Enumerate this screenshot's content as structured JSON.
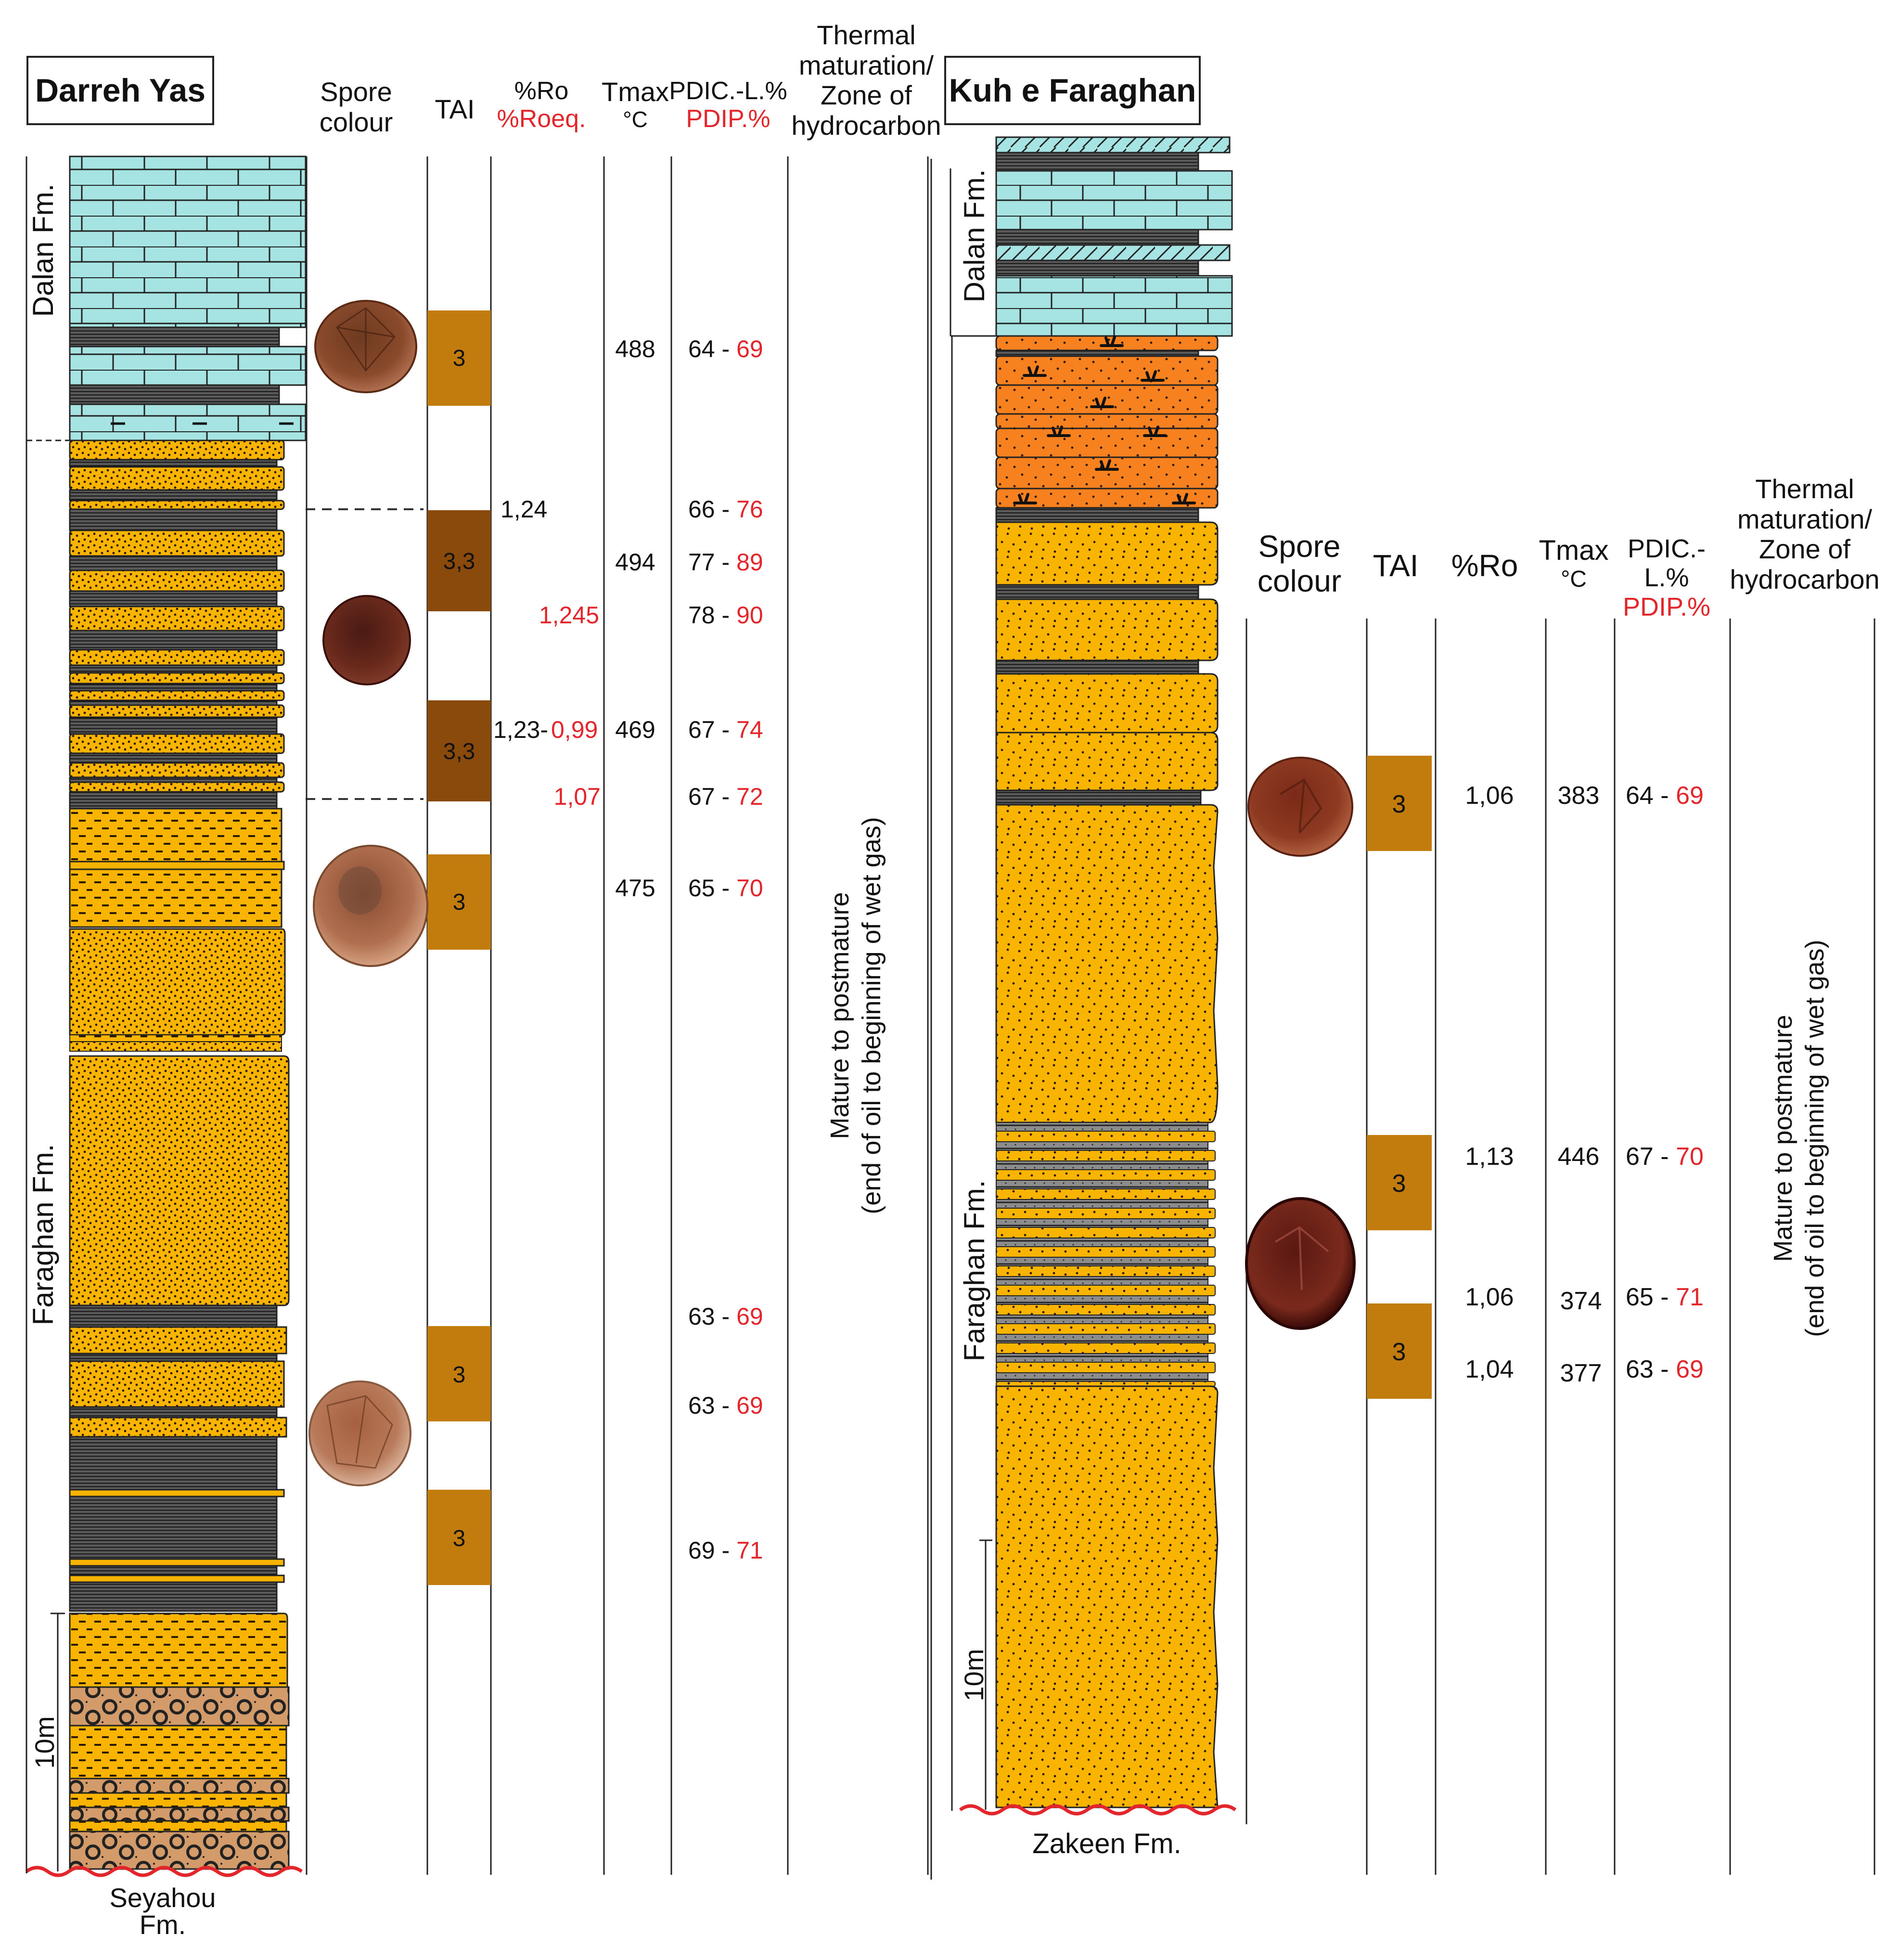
{
  "darreh": {
    "title": "Darreh Yas",
    "headers": {
      "spore": [
        "Spore",
        "colour"
      ],
      "tai": "TAI",
      "ro": "%Ro",
      "ro_eq": "%Roeq.",
      "tmax": "Tmax",
      "tmax_unit": "°C",
      "pdi_cl": "PDIC.-L.%",
      "pdi_p": "PDIP.%",
      "thermal": [
        "Thermal",
        "maturation/",
        "Zone of",
        "hydrocarbon"
      ]
    },
    "formations": {
      "top": "Dalan Fm.",
      "middle": "Faraghan Fm.",
      "base": [
        "Seyahou",
        "Fm."
      ]
    },
    "scale": "10m",
    "tai": [
      "3",
      "3,3",
      "3,3",
      "3",
      "3",
      "3"
    ],
    "ro": [
      "1,24",
      "1,245",
      "1,23-",
      "0,99",
      "1,07"
    ],
    "tmax": [
      "488",
      "494",
      "469",
      "475"
    ],
    "pdi": [
      [
        "64",
        "69"
      ],
      [
        "66",
        "76"
      ],
      [
        "77",
        "89"
      ],
      [
        "78",
        "90"
      ],
      [
        "67",
        "74"
      ],
      [
        "67",
        "72"
      ],
      [
        "65",
        "70"
      ],
      [
        "63",
        "69"
      ],
      [
        "63",
        "69"
      ],
      [
        "69",
        "71"
      ]
    ],
    "zone": [
      "Mature to postmature",
      "(end of oil to beginning of wet gas)"
    ]
  },
  "kuh": {
    "title": "Kuh e Faraghan",
    "headers": {
      "spore": [
        "Spore",
        "colour"
      ],
      "tai": "TAI",
      "ro": "%Ro",
      "tmax": "Tmax",
      "tmax_unit": "°C",
      "pdi_cl": "PDIC.-L.%",
      "pdi_p": "PDIP.%",
      "thermal": [
        "Thermal",
        "maturation/",
        "Zone of",
        "hydrocarbon"
      ]
    },
    "formations": {
      "top": "Dalan Fm.",
      "middle": "Faraghan Fm.",
      "base": "Zakeen Fm."
    },
    "scale": "10m",
    "tai": [
      "3",
      "3",
      "3"
    ],
    "ro": [
      "1,06",
      "1,13",
      "1,06",
      "1,04"
    ],
    "tmax": [
      "383",
      "446",
      "374",
      "377"
    ],
    "pdi": [
      [
        "64",
        "69"
      ],
      [
        "67",
        "70"
      ],
      [
        "65",
        "71"
      ],
      [
        "63",
        "69"
      ]
    ],
    "zone": [
      "Mature to postmature",
      "(end of oil to beginning of wet gas)"
    ]
  },
  "colors": {
    "limestone": "#a6e3e3",
    "sandstone": "#f8b400",
    "shale": "#5a5a5a",
    "conglomerate": "#d39a6a",
    "red_bed": "#f7801f",
    "tai_3": "#c27c0e",
    "tai_33": "#8a4a0c",
    "red_text": "#e3262b"
  }
}
